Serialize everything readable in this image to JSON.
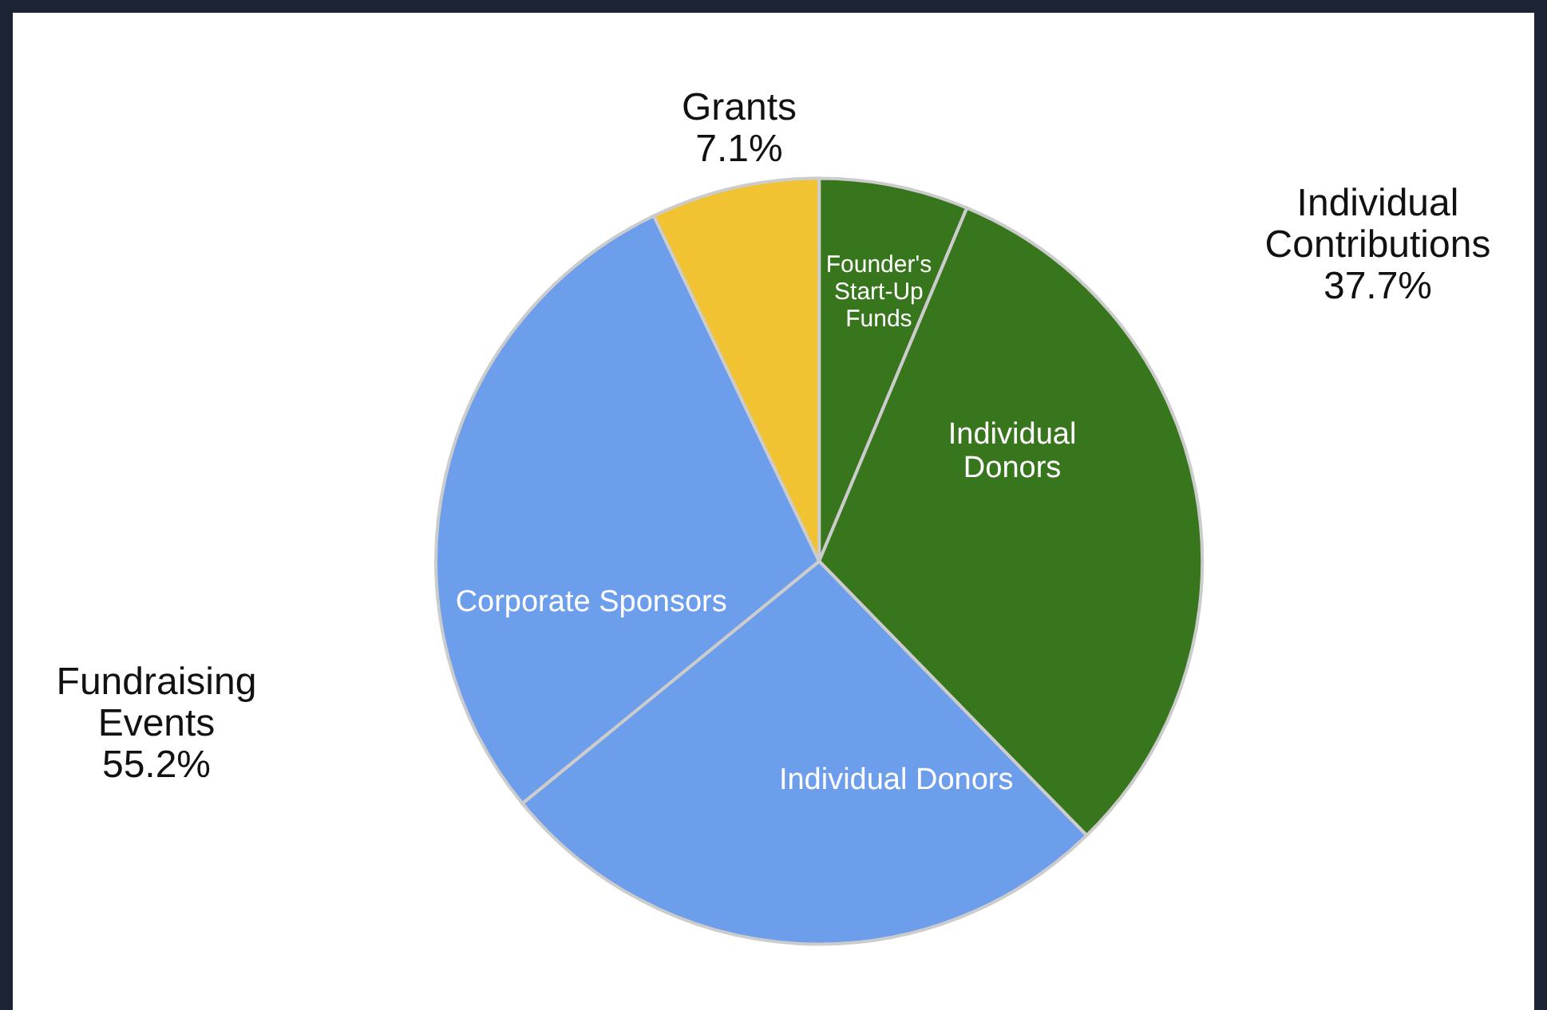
{
  "chart_data": {
    "type": "pie",
    "categories": [
      "Founder's Start-Up Funds",
      "Individual Donors",
      "Individual Donors",
      "Corporate Sponsors",
      null
    ],
    "values": [
      6.3,
      31.4,
      26.4,
      28.8,
      7.1
    ],
    "colors": [
      "#38761d",
      "#38761d",
      "#6d9eeb",
      "#6d9eeb",
      "#f1c232"
    ],
    "annotations": [
      "Grants 7.1%",
      "Individual Contributions 37.7%",
      "Fundraising Events 55.2%"
    ]
  }
}
